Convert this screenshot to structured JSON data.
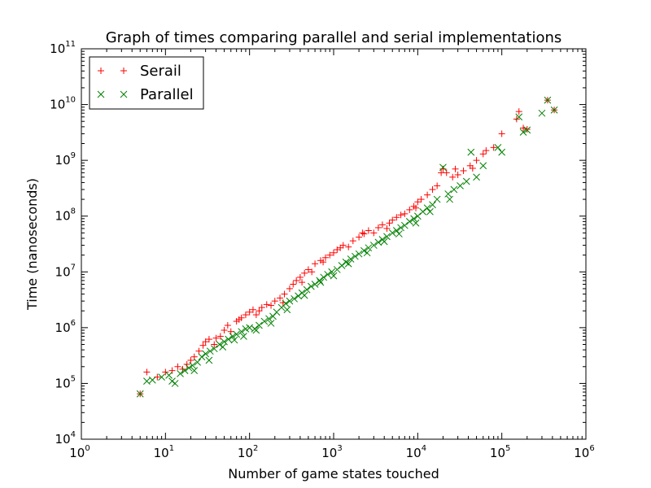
{
  "chart_data": {
    "type": "scatter",
    "title": "Graph of times comparing parallel and serial implementations",
    "xlabel": "Number of game states touched",
    "ylabel": "Time (nanoseconds)",
    "xscale": "log",
    "yscale": "log",
    "xlim": [
      1,
      1000000
    ],
    "ylim": [
      10000,
      100000000000
    ],
    "grid": false,
    "legend_position": "top-left",
    "x_ticks": [
      {
        "base": "10",
        "exp": "0",
        "value": 1
      },
      {
        "base": "10",
        "exp": "1",
        "value": 10
      },
      {
        "base": "10",
        "exp": "2",
        "value": 100
      },
      {
        "base": "10",
        "exp": "3",
        "value": 1000
      },
      {
        "base": "10",
        "exp": "4",
        "value": 10000
      },
      {
        "base": "10",
        "exp": "5",
        "value": 100000
      },
      {
        "base": "10",
        "exp": "6",
        "value": 1000000
      }
    ],
    "y_ticks": [
      {
        "base": "10",
        "exp": "4",
        "value": 10000
      },
      {
        "base": "10",
        "exp": "5",
        "value": 100000
      },
      {
        "base": "10",
        "exp": "6",
        "value": 1000000
      },
      {
        "base": "10",
        "exp": "7",
        "value": 10000000
      },
      {
        "base": "10",
        "exp": "8",
        "value": 100000000
      },
      {
        "base": "10",
        "exp": "9",
        "value": 1000000000
      },
      {
        "base": "10",
        "exp": "10",
        "value": 10000000000
      },
      {
        "base": "10",
        "exp": "11",
        "value": 100000000000
      }
    ],
    "series": [
      {
        "name": "Serail",
        "marker": "plus",
        "color": "#ff0000",
        "points": [
          [
            5,
            65000
          ],
          [
            6,
            160000
          ],
          [
            8,
            130000
          ],
          [
            10,
            160000
          ],
          [
            12,
            170000
          ],
          [
            14,
            200000
          ],
          [
            16,
            180000
          ],
          [
            18,
            220000
          ],
          [
            20,
            260000
          ],
          [
            22,
            300000
          ],
          [
            25,
            380000
          ],
          [
            28,
            480000
          ],
          [
            30,
            560000
          ],
          [
            33,
            620000
          ],
          [
            38,
            500000
          ],
          [
            45,
            700000
          ],
          [
            50,
            900000
          ],
          [
            55,
            1100000
          ],
          [
            60,
            850000
          ],
          [
            70,
            1300000
          ],
          [
            80,
            1500000
          ],
          [
            90,
            1700000
          ],
          [
            100,
            1900000
          ],
          [
            110,
            2100000
          ],
          [
            120,
            1700000
          ],
          [
            140,
            2300000
          ],
          [
            160,
            2600000
          ],
          [
            180,
            2500000
          ],
          [
            200,
            3000000
          ],
          [
            230,
            3400000
          ],
          [
            260,
            4000000
          ],
          [
            300,
            5000000
          ],
          [
            330,
            6000000
          ],
          [
            360,
            7000000
          ],
          [
            400,
            8000000
          ],
          [
            450,
            9500000
          ],
          [
            500,
            11000000
          ],
          [
            550,
            10000000
          ],
          [
            600,
            14000000
          ],
          [
            700,
            16000000
          ],
          [
            800,
            18000000
          ],
          [
            900,
            20000000
          ],
          [
            1000,
            22000000
          ],
          [
            1100,
            25000000
          ],
          [
            1300,
            30000000
          ],
          [
            1500,
            28000000
          ],
          [
            1700,
            36000000
          ],
          [
            2000,
            42000000
          ],
          [
            2300,
            48000000
          ],
          [
            2600,
            55000000
          ],
          [
            3000,
            50000000
          ],
          [
            3400,
            62000000
          ],
          [
            3800,
            70000000
          ],
          [
            4300,
            60000000
          ],
          [
            5000,
            85000000
          ],
          [
            5600,
            95000000
          ],
          [
            6300,
            105000000
          ],
          [
            7000,
            110000000
          ],
          [
            8000,
            130000000
          ],
          [
            9000,
            150000000
          ],
          [
            10000,
            180000000
          ],
          [
            11000,
            200000000
          ],
          [
            13000,
            240000000
          ],
          [
            15000,
            300000000
          ],
          [
            17000,
            350000000
          ],
          [
            20000,
            700000000
          ],
          [
            22000,
            600000000
          ],
          [
            26000,
            500000000
          ],
          [
            30000,
            550000000
          ],
          [
            35000,
            650000000
          ],
          [
            42000,
            800000000
          ],
          [
            50000,
            1000000000
          ],
          [
            60000,
            1300000000
          ],
          [
            80000,
            1700000000
          ],
          [
            100000,
            3000000000
          ],
          [
            150000,
            5500000000
          ],
          [
            160000,
            7500000000
          ],
          [
            180000,
            3800000000
          ],
          [
            200000,
            3600000000
          ],
          [
            350000,
            12000000000
          ],
          [
            420000,
            8000000000
          ],
          [
            40,
            650000
          ],
          [
            75,
            1400000
          ],
          [
            130,
            2000000
          ],
          [
            250,
            2800000
          ],
          [
            420,
            6500000
          ],
          [
            750,
            15000000
          ],
          [
            1200,
            27000000
          ],
          [
            2200,
            50000000
          ],
          [
            4600,
            75000000
          ],
          [
            9500,
            140000000
          ],
          [
            19000,
            600000000
          ],
          [
            28000,
            700000000
          ],
          [
            45000,
            720000000
          ],
          [
            65000,
            1500000000
          ]
        ]
      },
      {
        "name": "Parallel",
        "marker": "x",
        "color": "#008000",
        "points": [
          [
            5,
            65000
          ],
          [
            6,
            110000
          ],
          [
            7,
            115000
          ],
          [
            9,
            130000
          ],
          [
            11,
            140000
          ],
          [
            13,
            100000
          ],
          [
            15,
            150000
          ],
          [
            17,
            170000
          ],
          [
            19,
            190000
          ],
          [
            21,
            210000
          ],
          [
            24,
            240000
          ],
          [
            27,
            300000
          ],
          [
            30,
            340000
          ],
          [
            34,
            380000
          ],
          [
            38,
            420000
          ],
          [
            44,
            500000
          ],
          [
            50,
            560000
          ],
          [
            56,
            620000
          ],
          [
            63,
            700000
          ],
          [
            70,
            760000
          ],
          [
            80,
            850000
          ],
          [
            90,
            950000
          ],
          [
            100,
            1000000
          ],
          [
            115,
            950000
          ],
          [
            130,
            1100000
          ],
          [
            150,
            1300000
          ],
          [
            170,
            1450000
          ],
          [
            190,
            1600000
          ],
          [
            210,
            1900000
          ],
          [
            240,
            2300000
          ],
          [
            270,
            2700000
          ],
          [
            300,
            3000000
          ],
          [
            340,
            3300000
          ],
          [
            380,
            3700000
          ],
          [
            420,
            4200000
          ],
          [
            480,
            4800000
          ],
          [
            540,
            5500000
          ],
          [
            600,
            6000000
          ],
          [
            680,
            7000000
          ],
          [
            760,
            8000000
          ],
          [
            850,
            9000000
          ],
          [
            950,
            10000000
          ],
          [
            1100,
            11000000
          ],
          [
            1250,
            13000000
          ],
          [
            1400,
            15000000
          ],
          [
            1600,
            17000000
          ],
          [
            1800,
            19000000
          ],
          [
            2000,
            21000000
          ],
          [
            2300,
            24000000
          ],
          [
            2600,
            27000000
          ],
          [
            3000,
            30000000
          ],
          [
            3400,
            34000000
          ],
          [
            3800,
            38000000
          ],
          [
            4300,
            43000000
          ],
          [
            5000,
            50000000
          ],
          [
            5600,
            55000000
          ],
          [
            6300,
            62000000
          ],
          [
            7000,
            68000000
          ],
          [
            8000,
            80000000
          ],
          [
            9000,
            90000000
          ],
          [
            10000,
            100000000
          ],
          [
            11500,
            120000000
          ],
          [
            13000,
            140000000
          ],
          [
            15000,
            160000000
          ],
          [
            17000,
            200000000
          ],
          [
            20000,
            750000000
          ],
          [
            23000,
            250000000
          ],
          [
            27000,
            300000000
          ],
          [
            32000,
            350000000
          ],
          [
            38000,
            420000000
          ],
          [
            43000,
            1400000000
          ],
          [
            50000,
            500000000
          ],
          [
            60000,
            800000000
          ],
          [
            90000,
            1700000000
          ],
          [
            100000,
            1400000000
          ],
          [
            160000,
            6000000000
          ],
          [
            180000,
            3200000000
          ],
          [
            200000,
            3500000000
          ],
          [
            300000,
            7000000000
          ],
          [
            350000,
            12000000000
          ],
          [
            420000,
            8000000000
          ],
          [
            12,
            110000
          ],
          [
            22,
            170000
          ],
          [
            33,
            260000
          ],
          [
            48,
            450000
          ],
          [
            66,
            600000
          ],
          [
            85,
            700000
          ],
          [
            120,
            900000
          ],
          [
            180,
            1200000
          ],
          [
            280,
            2100000
          ],
          [
            450,
            3800000
          ],
          [
            700,
            6500000
          ],
          [
            1000,
            8500000
          ],
          [
            1500,
            14000000
          ],
          [
            2500,
            22000000
          ],
          [
            4000,
            35000000
          ],
          [
            6000,
            48000000
          ],
          [
            9500,
            75000000
          ],
          [
            14000,
            120000000
          ],
          [
            24000,
            200000000
          ]
        ]
      }
    ]
  }
}
